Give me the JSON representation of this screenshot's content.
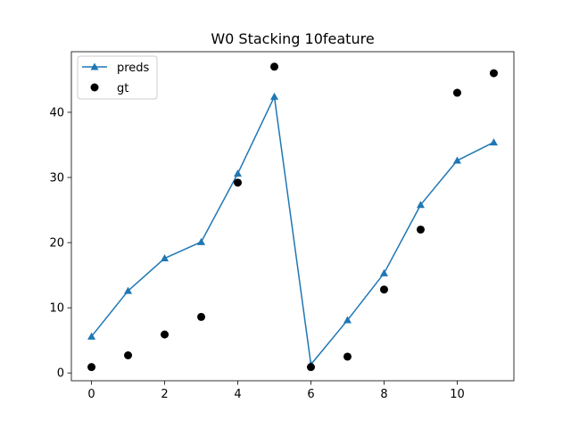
{
  "chart_data": {
    "type": "line",
    "title": "W0 Stacking 10feature",
    "xlabel": "",
    "ylabel": "",
    "xlim": [
      -0.55,
      11.55
    ],
    "ylim": [
      -1.2,
      49.3
    ],
    "xticks": [
      0,
      2,
      4,
      6,
      8,
      10
    ],
    "yticks": [
      0,
      10,
      20,
      30,
      40
    ],
    "grid": false,
    "legend_position": "top-left",
    "x": [
      0,
      1,
      2,
      3,
      4,
      5,
      6,
      7,
      8,
      9,
      10,
      11
    ],
    "series": [
      {
        "name": "preds",
        "kind": "line",
        "marker": "triangle",
        "color": "#1f77b4",
        "values": [
          5.6,
          12.6,
          17.6,
          20.1,
          30.6,
          42.4,
          1.3,
          8.1,
          15.3,
          25.8,
          32.6,
          35.4
        ]
      },
      {
        "name": "gt",
        "kind": "scatter",
        "marker": "circle",
        "color": "#000000",
        "values": [
          0.9,
          2.7,
          5.9,
          8.6,
          29.2,
          47.0,
          0.9,
          2.5,
          12.8,
          22.0,
          43.0,
          46.0
        ]
      }
    ]
  }
}
